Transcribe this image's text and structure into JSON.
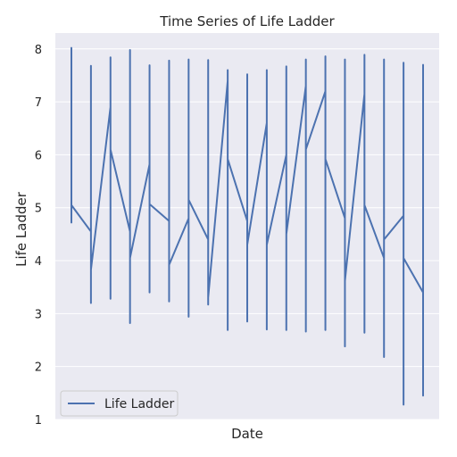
{
  "chart_data": {
    "type": "line",
    "title": "Time Series of Life Ladder",
    "xlabel": "Date",
    "ylabel": "Life Ladder",
    "ylim": [
      1,
      8.3
    ],
    "yticks": [
      1,
      2,
      3,
      4,
      5,
      6,
      7,
      8
    ],
    "grid": true,
    "legend": "lower-left",
    "colors": {
      "line": "#4c72b0",
      "plot_bg": "#eaeaf2",
      "grid": "#ffffff"
    },
    "series": [
      {
        "name": "Life Ladder",
        "segments": [
          {
            "x": 0,
            "start": 5.05,
            "min": 4.72,
            "max": 8.02,
            "end": 5.05
          },
          {
            "x": 1,
            "start": 4.55,
            "min": 3.2,
            "max": 7.68,
            "end": 3.83
          },
          {
            "x": 2,
            "start": 6.9,
            "min": 3.28,
            "max": 7.84,
            "end": 6.1
          },
          {
            "x": 3,
            "start": 4.55,
            "min": 2.82,
            "max": 7.98,
            "end": 4.05
          },
          {
            "x": 4,
            "start": 5.82,
            "min": 3.4,
            "max": 7.69,
            "end": 5.07
          },
          {
            "x": 5,
            "start": 4.75,
            "min": 3.23,
            "max": 7.78,
            "end": 3.92
          },
          {
            "x": 6,
            "start": 4.8,
            "min": 2.94,
            "max": 7.8,
            "end": 5.15
          },
          {
            "x": 7,
            "start": 4.4,
            "min": 3.17,
            "max": 7.79,
            "end": 3.3
          },
          {
            "x": 8,
            "start": 7.4,
            "min": 2.69,
            "max": 7.6,
            "end": 5.92
          },
          {
            "x": 9,
            "start": 4.75,
            "min": 2.85,
            "max": 7.52,
            "end": 4.3
          },
          {
            "x": 10,
            "start": 6.6,
            "min": 2.7,
            "max": 7.6,
            "end": 4.3
          },
          {
            "x": 11,
            "start": 6.0,
            "min": 2.69,
            "max": 7.67,
            "end": 4.5
          },
          {
            "x": 12,
            "start": 7.3,
            "min": 2.66,
            "max": 7.8,
            "end": 6.1
          },
          {
            "x": 13,
            "start": 7.2,
            "min": 2.69,
            "max": 7.86,
            "end": 5.92
          },
          {
            "x": 14,
            "start": 4.8,
            "min": 2.38,
            "max": 7.8,
            "end": 3.62
          },
          {
            "x": 15,
            "start": 7.15,
            "min": 2.64,
            "max": 7.89,
            "end": 5.05
          },
          {
            "x": 16,
            "start": 4.05,
            "min": 2.18,
            "max": 7.8,
            "end": 4.4
          },
          {
            "x": 17,
            "start": 4.85,
            "min": 1.28,
            "max": 7.74,
            "end": 4.05
          },
          {
            "x": 18,
            "start": 3.4,
            "min": 1.45,
            "max": 7.7,
            "end": 3.4
          }
        ]
      }
    ]
  }
}
